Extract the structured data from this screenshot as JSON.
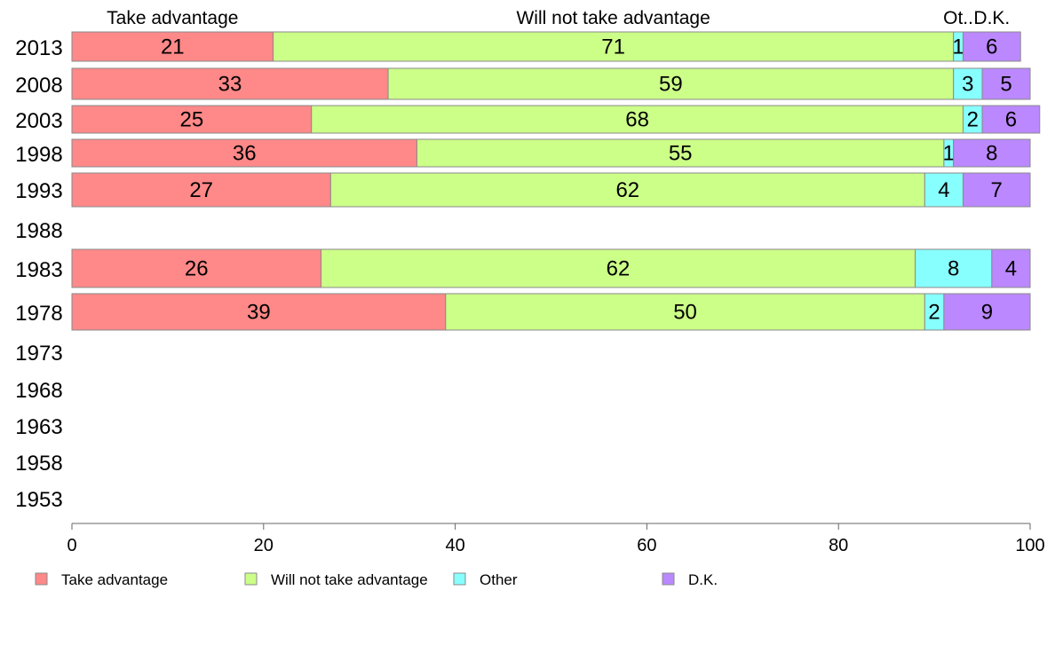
{
  "chart_data": {
    "type": "bar",
    "orientation": "horizontal",
    "stacked": true,
    "xlim": [
      0,
      100
    ],
    "xticks": [
      0,
      20,
      40,
      60,
      80,
      100
    ],
    "categories": [
      "2013",
      "2008",
      "2003",
      "1998",
      "1993",
      "1988",
      "1983",
      "1978",
      "1973",
      "1968",
      "1963",
      "1958",
      "1953"
    ],
    "series": [
      {
        "name": "Take advantage",
        "header": "Take advantage",
        "color": "#ff8888",
        "values": [
          21,
          33,
          25,
          36,
          27,
          null,
          26,
          39,
          null,
          null,
          null,
          null,
          null
        ]
      },
      {
        "name": "Will not take advantage",
        "header": "Will not take advantage",
        "color": "#ccff88",
        "values": [
          71,
          59,
          68,
          55,
          62,
          null,
          62,
          50,
          null,
          null,
          null,
          null,
          null
        ]
      },
      {
        "name": "Other",
        "header": "Ot..",
        "color": "#88ffff",
        "values": [
          1,
          3,
          2,
          1,
          4,
          null,
          8,
          2,
          null,
          null,
          null,
          null,
          null
        ]
      },
      {
        "name": "D.K.",
        "header": "D.K.",
        "color": "#bb88ff",
        "values": [
          6,
          5,
          6,
          8,
          7,
          null,
          4,
          9,
          null,
          null,
          null,
          null,
          null
        ]
      }
    ],
    "legend_position": "bottom",
    "grid": false
  }
}
